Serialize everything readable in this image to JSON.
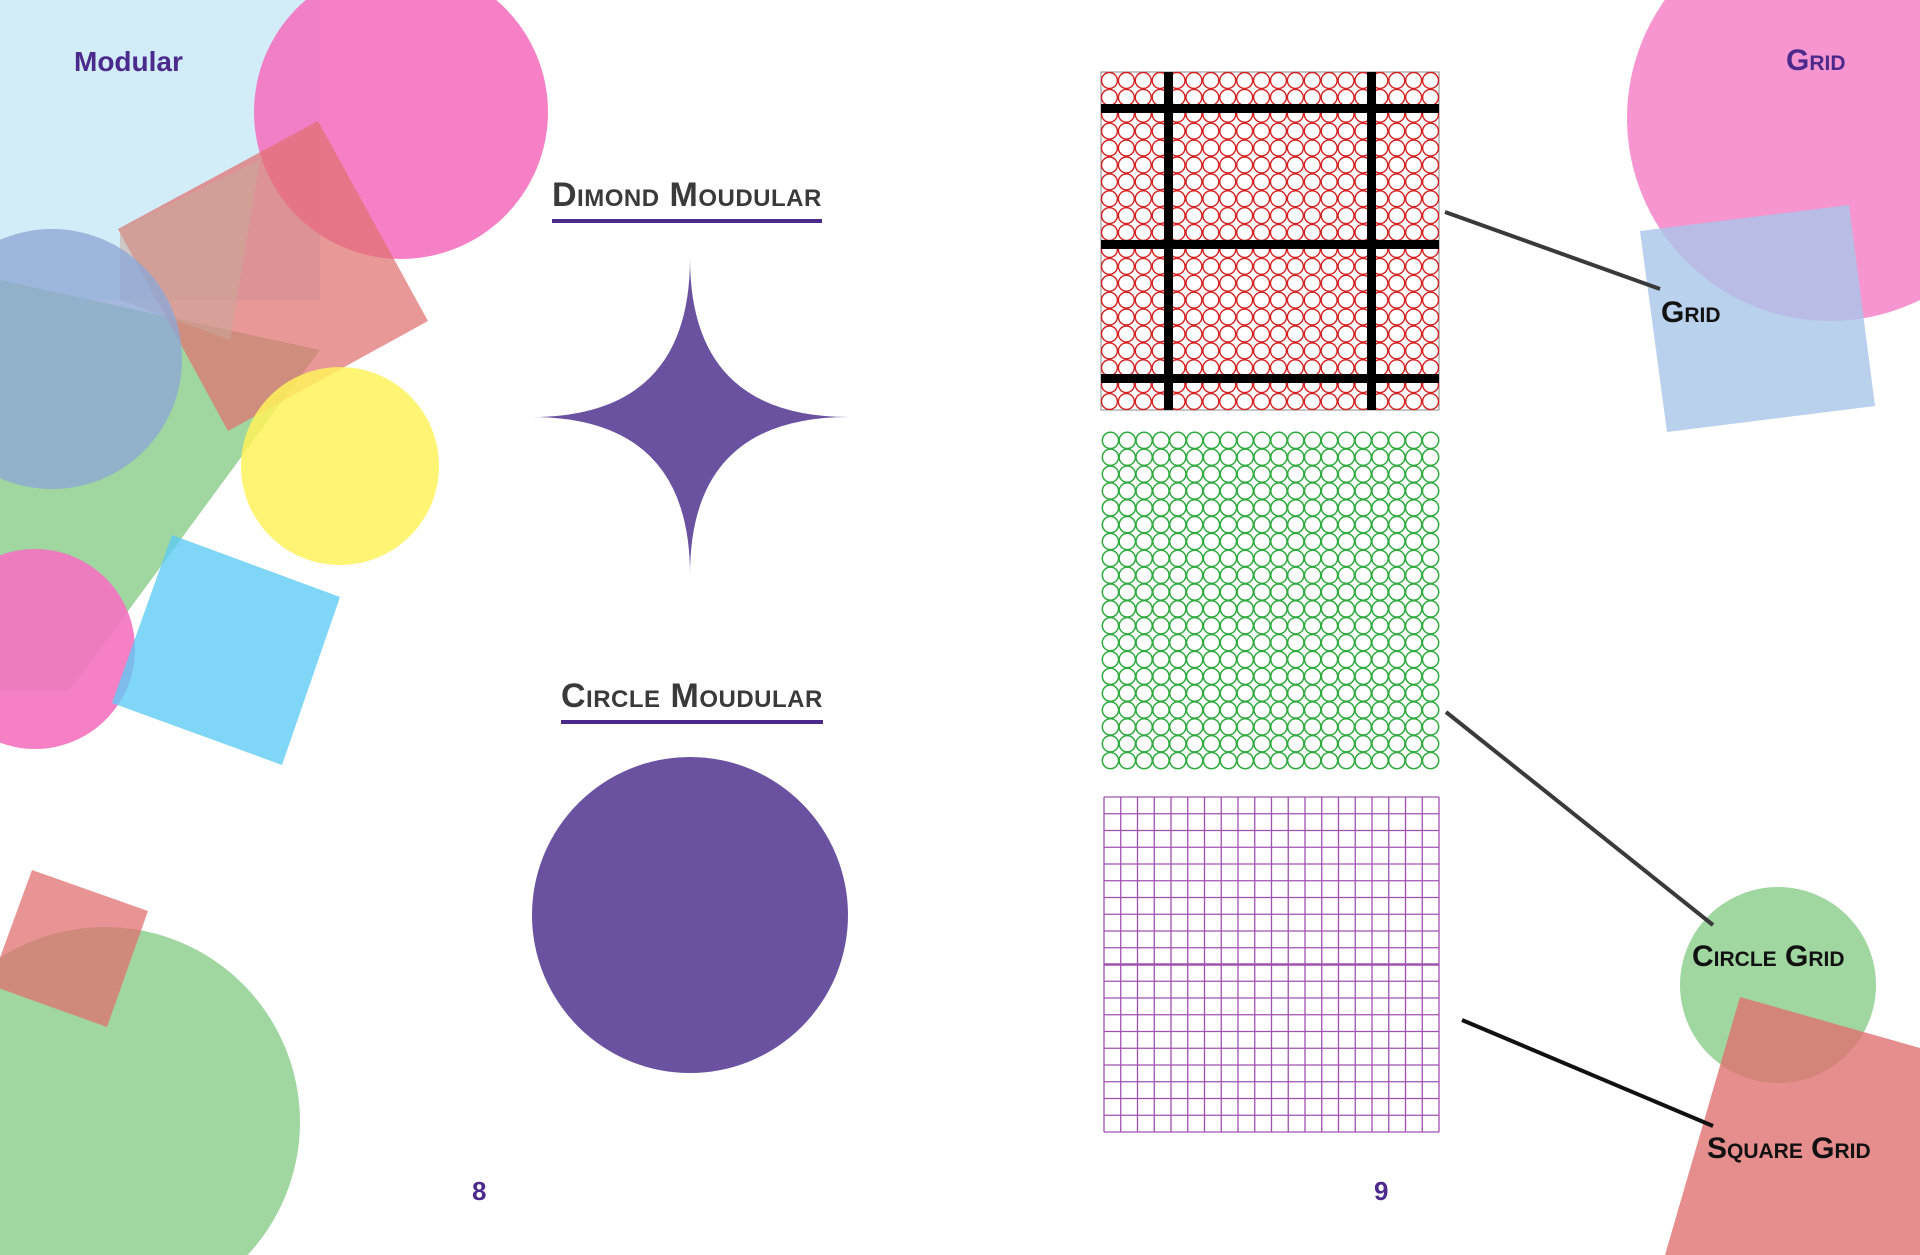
{
  "spread": {
    "left_page": {
      "header": "Modular",
      "diamond_heading": "Dimond Moudular",
      "circle_heading": "Circle Moudular",
      "page_number": "8",
      "shape_color": "#6a52a1"
    },
    "right_page": {
      "header": "Grid",
      "labels": {
        "grid": "Grid",
        "circle_grid": "Circle Grid",
        "square_grid": "Square Grid"
      },
      "page_number": "9"
    }
  },
  "colors": {
    "accent_purple": "#4b2a8c",
    "pink": "#f472c0",
    "light_blue": "#bfe6f5",
    "green": "#8fcf8f",
    "yellow": "#fff25a",
    "cyan": "#5ccbf5",
    "salmon": "#e07070",
    "tan": "#c9a89a",
    "periwinkle": "#8fa8d6",
    "grid_red": "#d42020",
    "grid_green": "#2eaa3e",
    "grid_purple": "#a050b0"
  }
}
